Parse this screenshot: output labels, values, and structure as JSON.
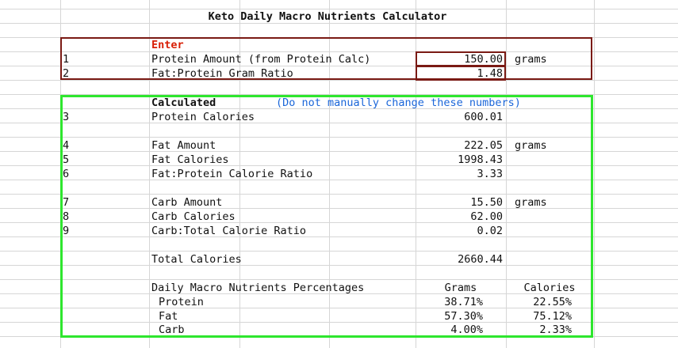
{
  "title": "Keto Daily Macro Nutrients Calculator",
  "enter_section": {
    "header": "Enter",
    "header_color": "#d81e05",
    "border_color": "#7a1a14",
    "rows": [
      {
        "num": "1",
        "label": "Protein Amount (from Protein Calc)",
        "value": "150.00",
        "unit": "grams"
      },
      {
        "num": "2",
        "label": "Fat:Protein Gram Ratio",
        "value": "1.48",
        "unit": ""
      }
    ]
  },
  "calc_section": {
    "header": "Calculated",
    "note": "(Do not manually change these numbers)",
    "note_color": "#1a66d9",
    "border_color": "#2ee62e",
    "rows": [
      {
        "num": "3",
        "label": "Protein Calories",
        "value": "600.01",
        "unit": ""
      },
      {
        "num": "4",
        "label": "Fat Amount",
        "value": "222.05",
        "unit": "grams"
      },
      {
        "num": "5",
        "label": "Fat Calories",
        "value": "1998.43",
        "unit": ""
      },
      {
        "num": "6",
        "label": "Fat:Protein Calorie Ratio",
        "value": "3.33",
        "unit": ""
      },
      {
        "num": "7",
        "label": "Carb Amount",
        "value": "15.50",
        "unit": "grams"
      },
      {
        "num": "8",
        "label": "Carb Calories",
        "value": "62.00",
        "unit": ""
      },
      {
        "num": "9",
        "label": "Carb:Total Calorie Ratio",
        "value": "0.02",
        "unit": ""
      }
    ],
    "total": {
      "label": "Total Calories",
      "value": "2660.44"
    },
    "percentages": {
      "header": "Daily Macro Nutrients Percentages",
      "col_grams": "Grams",
      "col_calories": "Calories",
      "rows": [
        {
          "label": "Protein",
          "grams": "38.71%",
          "calories": "22.55%"
        },
        {
          "label": "Fat",
          "grams": "57.30%",
          "calories": "75.12%"
        },
        {
          "label": "Carb",
          "grams": "4.00%",
          "calories": "2.33%"
        }
      ]
    }
  }
}
